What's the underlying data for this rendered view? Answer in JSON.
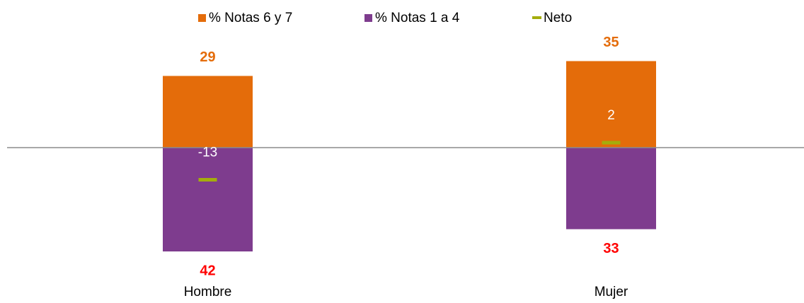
{
  "chart_data": {
    "type": "diverging_bar",
    "categories": [
      "Hombre",
      "Mujer"
    ],
    "ylim": [
      -50,
      40
    ],
    "series": [
      {
        "name": "% Notas 6 y 7",
        "color": "#e46c0a",
        "label_color": "#e46c0a",
        "values": [
          29,
          35
        ]
      },
      {
        "name": "% Notas 1 a 4",
        "color": "#7e3c8e",
        "label_color": "#ff0000",
        "values": [
          -42,
          -33
        ],
        "value_labels": [
          "42",
          "33"
        ]
      },
      {
        "name": "Neto",
        "color": "#a4ad0c",
        "label_color": "#ffffff",
        "marker": "dash",
        "values": [
          -13,
          2
        ]
      }
    ]
  }
}
